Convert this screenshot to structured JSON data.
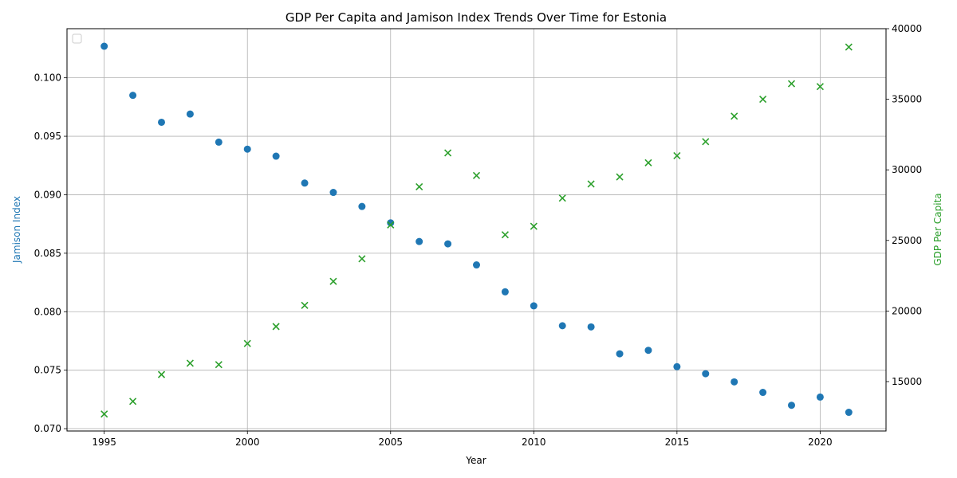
{
  "chart_data": {
    "type": "scatter",
    "title": "GDP Per Capita and Jamison Index Trends Over Time for Estonia",
    "xlabel": "Year",
    "ylabel_left": "Jamison Index",
    "ylabel_right": "GDP Per Capita",
    "xlim": [
      1993.7,
      2022.3
    ],
    "ylim_left": [
      0.0698,
      0.1042
    ],
    "ylim_right": [
      11500,
      40000
    ],
    "x_ticks": [
      1995,
      2000,
      2005,
      2010,
      2015,
      2020
    ],
    "y_ticks_left": [
      0.07,
      0.075,
      0.08,
      0.085,
      0.09,
      0.095,
      0.1
    ],
    "y_ticks_right": [
      15000,
      20000,
      25000,
      30000,
      35000,
      40000
    ],
    "grid": true,
    "legend": "top-left (empty)",
    "x": [
      1995,
      1996,
      1997,
      1998,
      1999,
      2000,
      2001,
      2002,
      2003,
      2004,
      2005,
      2006,
      2007,
      2008,
      2009,
      2010,
      2011,
      2012,
      2013,
      2014,
      2015,
      2016,
      2017,
      2018,
      2019,
      2020,
      2021
    ],
    "series": [
      {
        "axis": "left",
        "marker": "circle",
        "color": "#1f77b4",
        "values": [
          0.1027,
          0.0985,
          0.0962,
          0.0969,
          0.0945,
          0.0939,
          0.0933,
          0.091,
          0.0902,
          0.089,
          0.0876,
          0.086,
          0.0858,
          0.084,
          0.0817,
          0.0805,
          0.0788,
          0.0787,
          0.0764,
          0.0767,
          0.0753,
          0.0747,
          0.074,
          0.0731,
          0.072,
          0.0727,
          0.0714
        ]
      },
      {
        "axis": "right",
        "marker": "x",
        "color": "#2ca02c",
        "values": [
          12700,
          13600,
          15500,
          16300,
          16200,
          17700,
          18900,
          20400,
          22100,
          23700,
          26100,
          28800,
          31200,
          29600,
          25400,
          26000,
          28000,
          29000,
          29500,
          30500,
          31000,
          32000,
          33800,
          35000,
          36100,
          35900,
          38700
        ]
      }
    ]
  }
}
